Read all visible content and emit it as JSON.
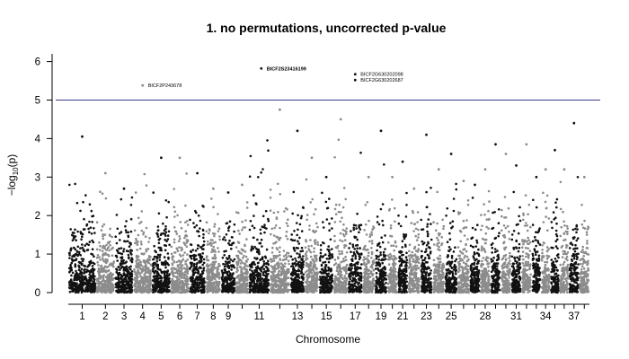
{
  "chart_data": {
    "type": "scatter",
    "subtype": "manhattan",
    "title": "1. no permutations, uncorrected p-value",
    "xlabel": "Chromosome",
    "ylabel": "−log",
    "ylabel_subscript": "10",
    "ylabel_arg": "(p)",
    "ylim": [
      0,
      6.2
    ],
    "yticks": [
      "0",
      "1",
      "2",
      "3",
      "4",
      "5",
      "6"
    ],
    "xtick_labels": [
      "1",
      "2",
      "3",
      "4",
      "5",
      "6",
      "7",
      "8",
      "9",
      "11",
      "13",
      "15",
      "17",
      "19",
      "21",
      "23",
      "25",
      "28",
      "31",
      "34",
      "37"
    ],
    "series_colors": [
      "#111111",
      "#8c8c8c"
    ],
    "threshold": {
      "value": 5.0,
      "color": "#3b3b8f"
    },
    "legend": "none",
    "grid": false,
    "chromosomes": [
      {
        "label": "1",
        "peak": 4.05
      },
      {
        "label": "2",
        "peak": 3.1
      },
      {
        "label": "3",
        "peak": 2.7
      },
      {
        "label": "4",
        "peak": 5.38
      },
      {
        "label": "5",
        "peak": 3.5
      },
      {
        "label": "6",
        "peak": 3.5
      },
      {
        "label": "7",
        "peak": 3.1
      },
      {
        "label": "8",
        "peak": 2.7
      },
      {
        "label": "9",
        "peak": 2.6
      },
      {
        "label": "10",
        "peak": 2.8
      },
      {
        "label": "11",
        "peak": 5.82
      },
      {
        "label": "12",
        "peak": 4.75
      },
      {
        "label": "13",
        "peak": 4.2
      },
      {
        "label": "14",
        "peak": 3.5
      },
      {
        "label": "15",
        "peak": 3.0
      },
      {
        "label": "16",
        "peak": 4.5
      },
      {
        "label": "17",
        "peak": 5.67
      },
      {
        "label": "18",
        "peak": 3.0
      },
      {
        "label": "19",
        "peak": 4.2
      },
      {
        "label": "20",
        "peak": 3.0
      },
      {
        "label": "21",
        "peak": 3.4
      },
      {
        "label": "22",
        "peak": 2.7
      },
      {
        "label": "23",
        "peak": 4.1
      },
      {
        "label": "24",
        "peak": 3.2
      },
      {
        "label": "25",
        "peak": 3.6
      },
      {
        "label": "26",
        "peak": 2.9
      },
      {
        "label": "27",
        "peak": 2.8
      },
      {
        "label": "28",
        "peak": 3.2
      },
      {
        "label": "29",
        "peak": 3.85
      },
      {
        "label": "30",
        "peak": 3.6
      },
      {
        "label": "31",
        "peak": 3.3
      },
      {
        "label": "32",
        "peak": 3.85
      },
      {
        "label": "33",
        "peak": 3.0
      },
      {
        "label": "34",
        "peak": 3.2
      },
      {
        "label": "35",
        "peak": 3.7
      },
      {
        "label": "36",
        "peak": 3.2
      },
      {
        "label": "37",
        "peak": 4.4
      },
      {
        "label": "38",
        "peak": 3.0
      }
    ],
    "annotations": [
      {
        "text": "BICF2P243678",
        "chromosome": "4",
        "y": 5.38,
        "bold": false
      },
      {
        "text": "BICF2S23416199",
        "chromosome": "11",
        "y": 5.82,
        "bold": true
      },
      {
        "text": "BICF2G630202098",
        "chromosome": "17",
        "y": 5.67,
        "bold": false
      },
      {
        "text": "BICF2G630202687",
        "chromosome": "17",
        "y": 5.52,
        "bold": false
      }
    ]
  }
}
